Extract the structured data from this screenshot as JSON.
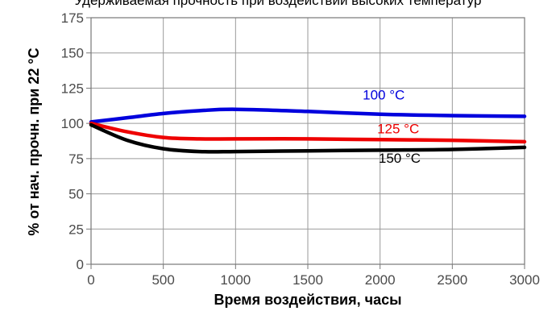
{
  "chart_data": {
    "type": "line",
    "title": "Удерживаемая прочность при воздействии высоких температур",
    "xlabel": "Время воздействия, часы",
    "ylabel": "% от нач.  прочн. при 22 °С",
    "xlim": [
      0,
      3000
    ],
    "ylim": [
      0,
      175
    ],
    "xticks": [
      0,
      500,
      1000,
      1500,
      2000,
      2500,
      3000
    ],
    "yticks": [
      0,
      25,
      50,
      75,
      100,
      125,
      150,
      175
    ],
    "grid": true,
    "legend": "inline labels near curves",
    "series": [
      {
        "name": "100 °C",
        "color": "#0000dd",
        "x": [
          0,
          250,
          500,
          750,
          1000,
          1500,
          2000,
          2500,
          3000
        ],
        "y": [
          101,
          104,
          107,
          109,
          110,
          108.5,
          106.5,
          105.5,
          105
        ]
      },
      {
        "name": "125 °C",
        "color": "#ee0000",
        "x": [
          0,
          250,
          500,
          750,
          1000,
          1500,
          2000,
          2500,
          3000
        ],
        "y": [
          100,
          94,
          90,
          89,
          89,
          89,
          88.5,
          88,
          87
        ]
      },
      {
        "name": "150 °C",
        "color": "#000000",
        "x": [
          0,
          250,
          500,
          750,
          1000,
          1500,
          2000,
          2500,
          3000
        ],
        "y": [
          99,
          88,
          82,
          80,
          80,
          80.5,
          81,
          81.5,
          83
        ]
      }
    ]
  }
}
